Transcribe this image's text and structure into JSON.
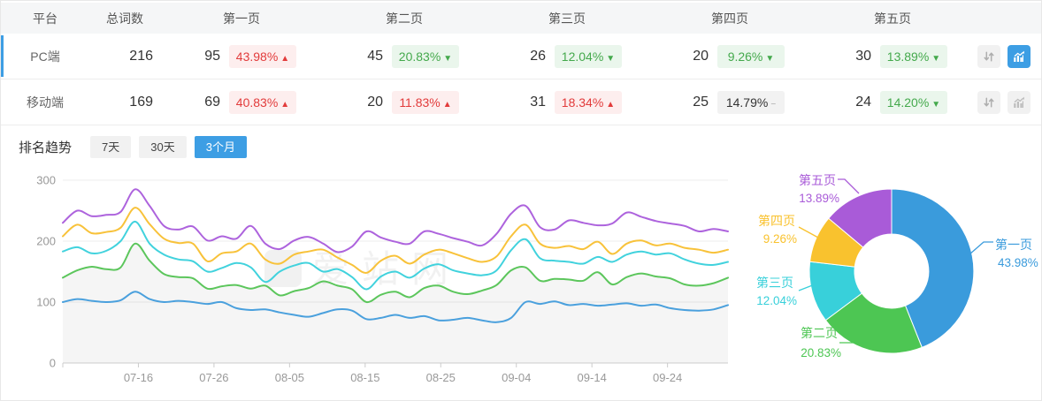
{
  "table": {
    "columns": [
      "平台",
      "总词数",
      "第一页",
      "第二页",
      "第三页",
      "第四页",
      "第五页"
    ],
    "rows": [
      {
        "platform": "PC端",
        "total": "216",
        "selected": true,
        "chart_active": true,
        "pages": [
          {
            "count": "95",
            "pct": "43.98%",
            "trend": "up"
          },
          {
            "count": "45",
            "pct": "20.83%",
            "trend": "down"
          },
          {
            "count": "26",
            "pct": "12.04%",
            "trend": "down"
          },
          {
            "count": "20",
            "pct": "9.26%",
            "trend": "down"
          },
          {
            "count": "30",
            "pct": "13.89%",
            "trend": "down"
          }
        ]
      },
      {
        "platform": "移动端",
        "total": "169",
        "selected": false,
        "chart_active": false,
        "pages": [
          {
            "count": "69",
            "pct": "40.83%",
            "trend": "up"
          },
          {
            "count": "20",
            "pct": "11.83%",
            "trend": "up"
          },
          {
            "count": "31",
            "pct": "18.34%",
            "trend": "up"
          },
          {
            "count": "25",
            "pct": "14.79%",
            "trend": "flat"
          },
          {
            "count": "24",
            "pct": "14.20%",
            "trend": "down"
          }
        ]
      }
    ],
    "icons": {
      "sort": "sort-arrows-icon",
      "chart": "trend-chart-icon"
    }
  },
  "trend": {
    "label": "排名趋势",
    "tabs": [
      {
        "label": "7天",
        "active": false
      },
      {
        "label": "30天",
        "active": false
      },
      {
        "label": "3个月",
        "active": true
      }
    ]
  },
  "watermark": "爱站网",
  "colors": {
    "accent_blue": "#3d9ee4",
    "badge_up_text": "#e23b3b",
    "badge_up_bg": "#fdeeee",
    "badge_down_text": "#44a94c",
    "badge_down_bg": "#eaf6ec",
    "badge_flat_text": "#333333",
    "badge_flat_bg": "#f2f2f2"
  },
  "chart_data": [
    {
      "type": "line",
      "title": "排名趋势 3个月",
      "x_range": [
        "07-06",
        "10-02"
      ],
      "x_tick_labels": [
        "07-16",
        "07-26",
        "08-05",
        "08-15",
        "08-25",
        "09-04",
        "09-14",
        "09-24"
      ],
      "ylim": [
        0,
        300
      ],
      "yticks": [
        0,
        100,
        200,
        300
      ],
      "grid": true,
      "legend": "none",
      "series": [
        {
          "name": "第一页",
          "color": "#4aa0dd",
          "area": false,
          "values": [
            100,
            105,
            102,
            100,
            103,
            117,
            105,
            100,
            102,
            100,
            97,
            100,
            90,
            87,
            88,
            83,
            79,
            76,
            82,
            88,
            86,
            72,
            74,
            79,
            74,
            77,
            70,
            71,
            74,
            70,
            67,
            74,
            100,
            97,
            101,
            95,
            97,
            94,
            96,
            98,
            94,
            96,
            90,
            87,
            86,
            88,
            95
          ]
        },
        {
          "name": "第二页",
          "color": "#5cc65c",
          "area": true,
          "values": [
            140,
            152,
            158,
            154,
            157,
            196,
            168,
            146,
            141,
            139,
            122,
            126,
            128,
            122,
            127,
            111,
            118,
            123,
            134,
            127,
            121,
            100,
            112,
            117,
            108,
            123,
            127,
            117,
            113,
            119,
            128,
            152,
            157,
            135,
            138,
            137,
            135,
            149,
            129,
            141,
            147,
            142,
            139,
            129,
            127,
            131,
            140
          ]
        },
        {
          "name": "第三页",
          "color": "#41d2dd",
          "area": false,
          "values": [
            183,
            190,
            180,
            184,
            200,
            232,
            196,
            178,
            170,
            167,
            150,
            156,
            164,
            157,
            133,
            150,
            160,
            164,
            150,
            154,
            141,
            121,
            142,
            150,
            140,
            155,
            162,
            152,
            147,
            144,
            152,
            185,
            203,
            172,
            168,
            166,
            163,
            174,
            166,
            178,
            183,
            178,
            180,
            170,
            163,
            161,
            166
          ]
        },
        {
          "name": "第四页",
          "color": "#f8c23a",
          "area": false,
          "values": [
            208,
            227,
            213,
            215,
            222,
            255,
            228,
            204,
            197,
            196,
            167,
            180,
            183,
            196,
            170,
            163,
            178,
            183,
            186,
            173,
            161,
            148,
            168,
            176,
            163,
            178,
            186,
            180,
            172,
            166,
            175,
            208,
            227,
            196,
            189,
            192,
            187,
            199,
            179,
            196,
            201,
            193,
            196,
            189,
            186,
            181,
            186
          ]
        },
        {
          "name": "第五页",
          "color": "#ad63dd",
          "area": false,
          "values": [
            230,
            250,
            241,
            243,
            248,
            285,
            258,
            225,
            219,
            224,
            201,
            208,
            204,
            225,
            196,
            187,
            201,
            207,
            196,
            182,
            191,
            216,
            206,
            199,
            196,
            216,
            212,
            205,
            199,
            193,
            212,
            245,
            258,
            223,
            219,
            234,
            230,
            226,
            229,
            247,
            240,
            233,
            229,
            225,
            216,
            220,
            216
          ]
        }
      ]
    },
    {
      "type": "pie",
      "donut": true,
      "start_angle": "top",
      "direction": "clockwise",
      "slices": [
        {
          "label": "第一页",
          "value": 43.98,
          "color": "#3a9bdc"
        },
        {
          "label": "第二页",
          "value": 20.83,
          "color": "#4dc653"
        },
        {
          "label": "第三页",
          "value": 12.04,
          "color": "#38d0da"
        },
        {
          "label": "第四页",
          "value": 9.26,
          "color": "#f9c22e"
        },
        {
          "label": "第五页",
          "value": 13.89,
          "color": "#a95bd8"
        }
      ]
    }
  ]
}
